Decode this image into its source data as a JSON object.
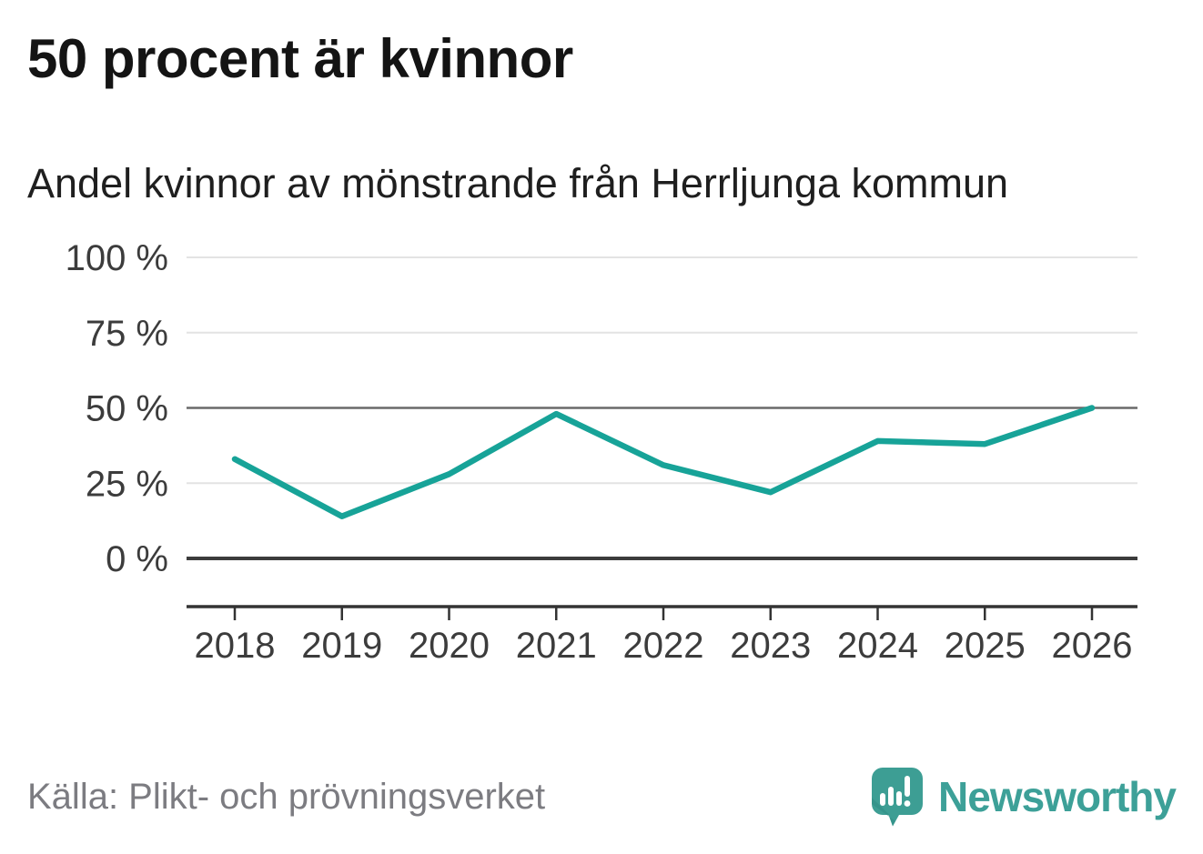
{
  "header": {
    "title": "50 procent är kvinnor",
    "subtitle": "Andel kvinnor av mönstrande från Herrljunga kommun"
  },
  "chart_data": {
    "type": "line",
    "categories": [
      "2018",
      "2019",
      "2020",
      "2021",
      "2022",
      "2023",
      "2024",
      "2025",
      "2026"
    ],
    "values": [
      33,
      14,
      28,
      48,
      31,
      22,
      39,
      38,
      50
    ],
    "title": "50 procent är kvinnor",
    "subtitle": "Andel kvinnor av mönstrande från Herrljunga kommun",
    "xlabel": "",
    "ylabel": "",
    "ylim": [
      0,
      100
    ],
    "yticks": [
      0,
      25,
      50,
      75,
      100
    ],
    "ytick_suffix": " %",
    "grid": "horizontal",
    "emphasized_gridline": 50,
    "baseline_gridline": 0,
    "legend": "none",
    "line_color": "#17a398",
    "gridline_color": "#e3e3e3",
    "emphasized_gridline_color": "#6a6a6a",
    "baseline_color": "#3c3c3c",
    "axis_color": "#333333",
    "tick_label_color": "#3c3c3c"
  },
  "footer": {
    "source": "Källa: Plikt- och prövningsverket",
    "brand": {
      "name": "Newsworthy",
      "bubble_color": "#3d9e94",
      "bubble_shade_color": "#2f8c83",
      "text_color": "#3da098"
    }
  }
}
